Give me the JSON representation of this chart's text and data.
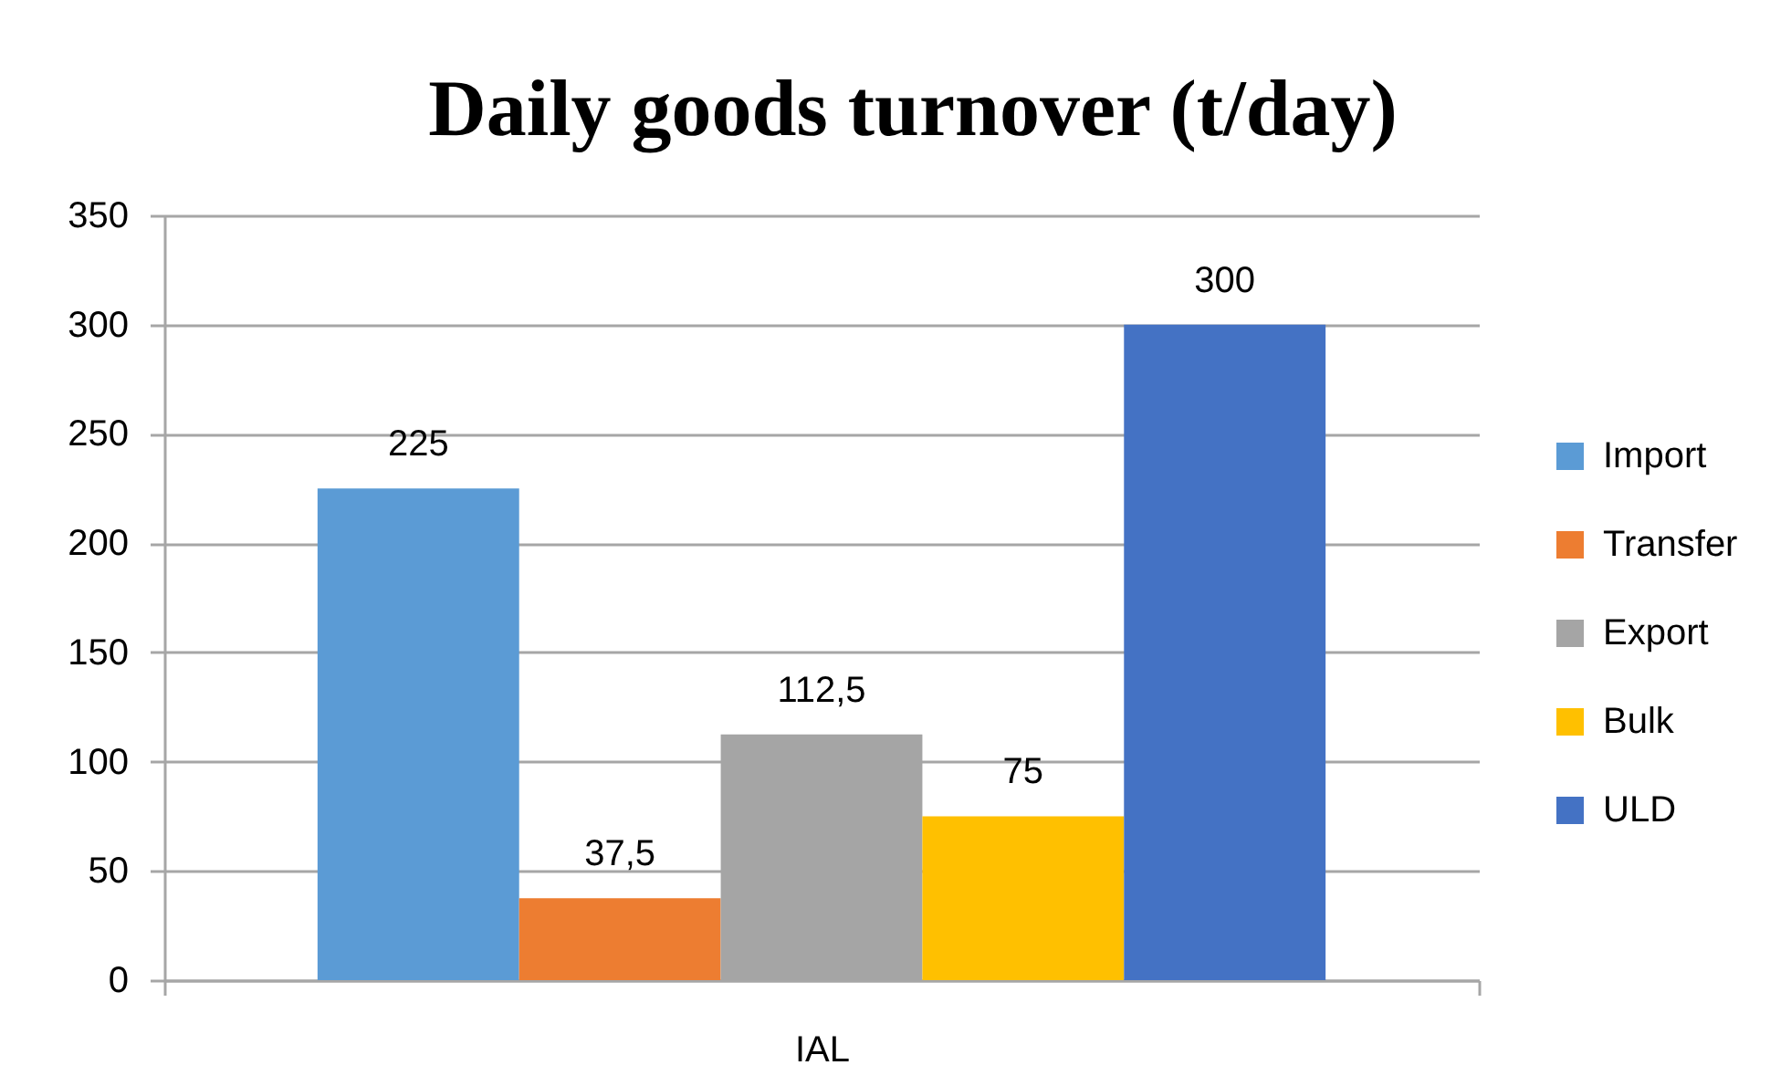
{
  "chart_data": {
    "type": "bar",
    "title": "Daily goods turnover (t/day)",
    "categories": [
      "IAL"
    ],
    "series": [
      {
        "name": "Import",
        "color": "#5b9bd5",
        "values": [
          225
        ],
        "value_labels": [
          "225"
        ]
      },
      {
        "name": "Transfer",
        "color": "#ed7d31",
        "values": [
          37.5
        ],
        "value_labels": [
          "37,5"
        ]
      },
      {
        "name": "Export",
        "color": "#a5a5a5",
        "values": [
          112.5
        ],
        "value_labels": [
          "112,5"
        ]
      },
      {
        "name": "Bulk",
        "color": "#ffc000",
        "values": [
          75
        ],
        "value_labels": [
          "75"
        ]
      },
      {
        "name": "ULD",
        "color": "#4472c4",
        "values": [
          300
        ],
        "value_labels": [
          "300"
        ]
      }
    ],
    "ylim": [
      0,
      350
    ],
    "yticks": [
      0,
      50,
      100,
      150,
      200,
      250,
      300,
      350
    ],
    "grid": "y",
    "legend": "right"
  }
}
